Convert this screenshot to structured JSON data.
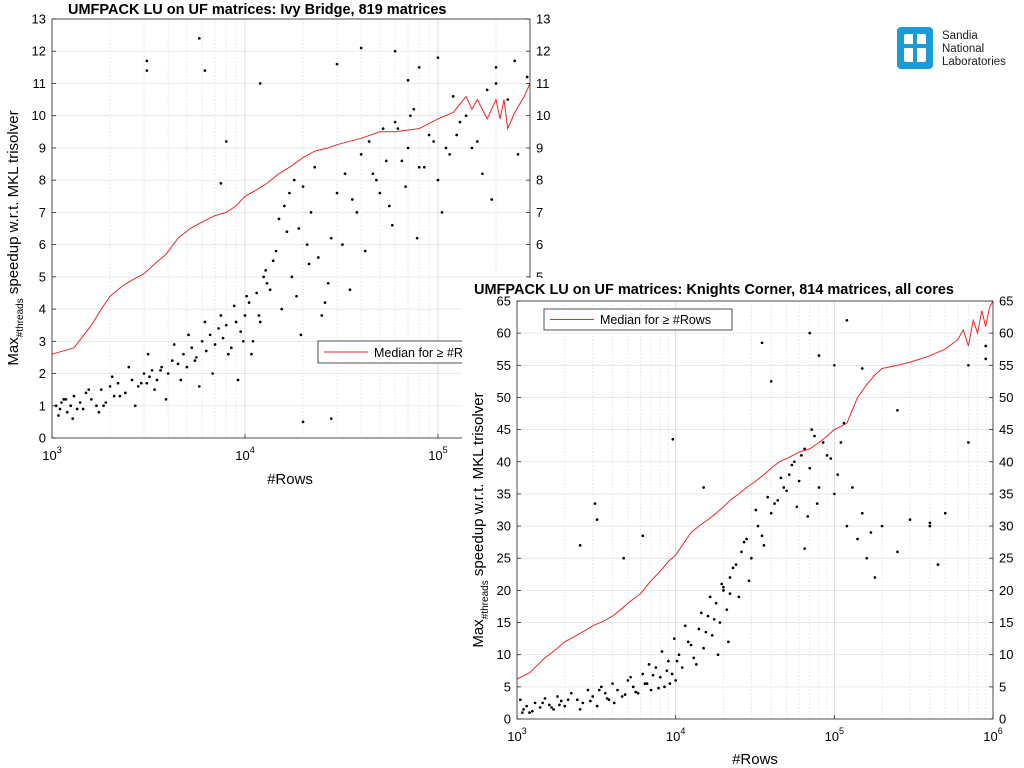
{
  "logo": {
    "lines": [
      "Sandia",
      "National",
      "Laboratories"
    ],
    "color": "#1a9ad6"
  },
  "chart_data": [
    {
      "type": "scatter",
      "title": "UMFPACK LU on UF matrices: Ivy Bridge, 819 matrices",
      "xlabel": "#Rows",
      "ylabel_main": "Max",
      "ylabel_sub": "#threads",
      "ylabel_rest": " speedup w.r.t. MKL trisolver",
      "xscale": "log",
      "xlim": [
        1000,
        300000
      ],
      "ylim": [
        0,
        13
      ],
      "y_ticks": [
        0,
        1,
        2,
        3,
        4,
        5,
        6,
        7,
        8,
        9,
        10,
        11,
        12,
        13
      ],
      "x_ticks": [
        {
          "base": "10",
          "exp": "3"
        },
        {
          "base": "10",
          "exp": "4"
        },
        {
          "base": "10",
          "exp": "5"
        }
      ],
      "grid": true,
      "legend": {
        "label": "Median for  ≥ #Rows",
        "placement": "middle-right"
      },
      "series": [
        {
          "name": "Median for  ≥ #Rows",
          "kind": "line",
          "color": "#e8282b",
          "x": [
            1000,
            1300,
            1600,
            1800,
            2000,
            2300,
            2600,
            3000,
            3400,
            3900,
            4500,
            5200,
            6000,
            7000,
            8000,
            9000,
            10000,
            11500,
            13000,
            15000,
            17000,
            20000,
            23000,
            27000,
            30000,
            40000,
            50000,
            60000,
            80000,
            100000,
            120000,
            140000,
            150000,
            160000,
            180000,
            200000,
            210000,
            220000,
            230000,
            250000,
            280000,
            300000
          ],
          "y": [
            2.6,
            2.8,
            3.5,
            4.0,
            4.4,
            4.7,
            4.9,
            5.1,
            5.4,
            5.7,
            6.2,
            6.5,
            6.7,
            6.9,
            7.0,
            7.2,
            7.5,
            7.7,
            7.9,
            8.2,
            8.4,
            8.7,
            8.9,
            9.0,
            9.1,
            9.3,
            9.5,
            9.5,
            9.6,
            9.9,
            10.1,
            10.6,
            10.2,
            10.5,
            9.9,
            10.5,
            9.9,
            10.5,
            9.6,
            10.1,
            10.6,
            11.0
          ]
        },
        {
          "name": "",
          "kind": "points",
          "color": "#000000",
          "x": [
            1050,
            1100,
            1120,
            1150,
            1200,
            1250,
            1300,
            1350,
            1400,
            1500,
            1600,
            1700,
            1800,
            1900,
            2000,
            2100,
            2200,
            2400,
            2600,
            2800,
            3000,
            3100,
            3200,
            3300,
            3500,
            3700,
            4000,
            4200,
            4500,
            4800,
            5000,
            5300,
            5600,
            6000,
            6300,
            6600,
            7000,
            7300,
            7700,
            8000,
            8500,
            9000,
            9500,
            10000,
            10500,
            11000,
            11500,
            12000,
            12500,
            13000,
            14000,
            15000,
            16000,
            17000,
            18000,
            19000,
            20000,
            21000,
            22000,
            23000,
            24000,
            26000,
            28000,
            30000,
            33000,
            36000,
            40000,
            44000,
            48000,
            52000,
            56000,
            60000,
            65000,
            70000,
            75000,
            80000,
            90000,
            100000,
            110000,
            120000,
            130000,
            140000,
            160000,
            180000,
            200000,
            230000,
            260000,
            290000,
            1080,
            1180,
            1280,
            1450,
            1550,
            1750,
            1850,
            2050,
            2250,
            2500,
            2700,
            2900,
            3150,
            3400,
            3650,
            3900,
            4300,
            4650,
            5100,
            5500,
            5800,
            6200,
            6800,
            7500,
            8200,
            8800,
            9200,
            9800,
            10200,
            10800,
            11800,
            12800,
            13500,
            14500,
            15500,
            16500,
            17500,
            18500,
            19500,
            21500,
            25000,
            27000,
            32000,
            35000,
            38000,
            42000,
            46000,
            50000,
            54000,
            58000,
            62000,
            68000,
            72000,
            78000,
            85000,
            95000,
            105000,
            115000,
            125000,
            150000,
            170000,
            190000,
            3100,
            3100,
            5800,
            6200,
            7500,
            8000,
            12000,
            20000,
            28000,
            30000,
            40000,
            60000,
            70000,
            80000,
            100000,
            200000,
            250000
          ],
          "y": [
            1.0,
            0.9,
            1.1,
            1.2,
            0.8,
            1.0,
            1.3,
            0.9,
            1.1,
            1.4,
            1.2,
            1.0,
            1.5,
            1.1,
            1.6,
            1.3,
            1.7,
            1.4,
            1.8,
            1.6,
            2.0,
            1.7,
            1.9,
            2.1,
            1.8,
            2.2,
            2.0,
            2.4,
            2.3,
            2.6,
            2.2,
            2.8,
            2.5,
            3.0,
            2.7,
            3.2,
            2.9,
            3.4,
            3.1,
            3.5,
            2.8,
            3.6,
            3.3,
            3.8,
            4.2,
            3.0,
            4.5,
            3.6,
            5.0,
            4.8,
            5.5,
            6.8,
            7.2,
            7.6,
            8.0,
            6.5,
            7.8,
            6.0,
            7.0,
            8.4,
            5.6,
            4.2,
            6.2,
            7.6,
            8.2,
            7.4,
            8.8,
            9.2,
            8.0,
            9.6,
            7.2,
            9.8,
            8.6,
            9.0,
            10.2,
            8.4,
            9.4,
            8.0,
            9.0,
            10.6,
            9.8,
            10.0,
            9.2,
            10.8,
            11.0,
            10.5,
            8.8,
            11.2,
            0.7,
            1.2,
            0.6,
            0.9,
            1.5,
            0.8,
            1.0,
            1.9,
            1.3,
            2.2,
            1.0,
            1.7,
            2.6,
            1.5,
            2.1,
            1.2,
            2.9,
            1.8,
            3.2,
            2.4,
            1.6,
            3.6,
            2.0,
            3.8,
            2.6,
            4.1,
            1.8,
            3.0,
            4.4,
            2.6,
            3.8,
            5.2,
            4.6,
            5.8,
            4.0,
            6.4,
            5.0,
            4.4,
            3.2,
            5.4,
            3.8,
            4.8,
            6.0,
            4.6,
            7.0,
            5.8,
            8.2,
            7.6,
            8.6,
            6.6,
            9.6,
            7.8,
            10.0,
            6.2,
            8.4,
            9.2,
            7.0,
            8.8,
            9.4,
            9.0,
            8.2,
            7.4,
            11.7,
            11.4,
            12.4,
            11.4,
            7.9,
            9.2,
            11.0,
            0.5,
            0.6,
            11.6,
            12.1,
            12.0,
            11.1,
            11.5,
            11.8,
            11.5,
            11.7
          ]
        }
      ]
    },
    {
      "type": "scatter",
      "title": "UMFPACK LU on UF matrices: Knights Corner, 814 matrices, all cores",
      "xlabel": "#Rows",
      "ylabel_main": "Max",
      "ylabel_sub": "#threads",
      "ylabel_rest": " speedup w.r.t. MKL trisolver",
      "xscale": "log",
      "xlim": [
        1000,
        1000000
      ],
      "ylim": [
        0,
        65
      ],
      "y_ticks": [
        0,
        5,
        10,
        15,
        20,
        25,
        30,
        35,
        40,
        45,
        50,
        55,
        60,
        65
      ],
      "x_ticks": [
        {
          "base": "10",
          "exp": "3"
        },
        {
          "base": "10",
          "exp": "4"
        },
        {
          "base": "10",
          "exp": "5"
        },
        {
          "base": "10",
          "exp": "6"
        }
      ],
      "grid": true,
      "legend": {
        "label": "Median for  ≥ #Rows",
        "placement": "top-left"
      },
      "series": [
        {
          "name": "Median for  ≥ #Rows",
          "kind": "line",
          "color": "#e8282b",
          "x": [
            1000,
            1200,
            1500,
            1800,
            2000,
            2300,
            2700,
            3000,
            3500,
            4000,
            4500,
            5000,
            6000,
            7000,
            8000,
            9000,
            10000,
            11000,
            12500,
            14000,
            16000,
            18000,
            20000,
            22000,
            25000,
            28000,
            32000,
            36000,
            40000,
            45000,
            50000,
            55000,
            60000,
            70000,
            80000,
            90000,
            100000,
            110000,
            120000,
            140000,
            160000,
            180000,
            200000,
            250000,
            300000,
            350000,
            400000,
            500000,
            600000,
            650000,
            700000,
            750000,
            800000,
            850000,
            900000,
            950000,
            1000000
          ],
          "y": [
            6.2,
            7.2,
            9.5,
            11.0,
            12.0,
            12.8,
            13.8,
            14.5,
            15.2,
            16.0,
            17.0,
            18.0,
            19.5,
            21.5,
            23.0,
            24.5,
            25.5,
            27.0,
            29.0,
            30.0,
            31.0,
            32.0,
            33.0,
            34.0,
            35.0,
            36.0,
            37.0,
            38.0,
            39.0,
            40.0,
            40.5,
            41.0,
            41.5,
            42.0,
            43.0,
            44.0,
            45.0,
            45.5,
            46.0,
            50.0,
            52.0,
            53.5,
            54.5,
            55.0,
            55.5,
            56.0,
            56.5,
            57.5,
            59.0,
            60.5,
            58.0,
            62.0,
            60.0,
            63.5,
            61.0,
            64.0,
            65.0
          ]
        },
        {
          "name": "",
          "kind": "points",
          "color": "#000000",
          "x": [
            1050,
            1100,
            1150,
            1200,
            1300,
            1400,
            1500,
            1600,
            1700,
            1800,
            1900,
            2000,
            2200,
            2400,
            2600,
            2800,
            3000,
            3200,
            3400,
            3600,
            3800,
            4000,
            4300,
            4600,
            5000,
            5400,
            5800,
            6200,
            6600,
            7000,
            7500,
            8000,
            8500,
            9000,
            9500,
            10000,
            10500,
            11000,
            12000,
            13000,
            14000,
            15000,
            16000,
            17000,
            18000,
            19000,
            20000,
            21000,
            22000,
            24000,
            26000,
            28000,
            30000,
            33000,
            36000,
            40000,
            44000,
            48000,
            52000,
            56000,
            60000,
            65000,
            70000,
            75000,
            80000,
            90000,
            100000,
            110000,
            120000,
            140000,
            160000,
            180000,
            200000,
            250000,
            300000,
            400000,
            500000,
            700000,
            900000,
            1080,
            1250,
            1450,
            1650,
            1850,
            2100,
            2500,
            2900,
            3300,
            3700,
            4100,
            4800,
            5200,
            5600,
            6400,
            6800,
            7200,
            7800,
            8200,
            8800,
            9200,
            9800,
            10200,
            11500,
            12500,
            13500,
            14500,
            15500,
            16500,
            17500,
            18500,
            19500,
            21500,
            23000,
            25000,
            27000,
            29000,
            32000,
            35000,
            38000,
            42000,
            46000,
            50000,
            54000,
            58000,
            62000,
            68000,
            72000,
            78000,
            85000,
            95000,
            105000,
            115000,
            130000,
            150000,
            170000,
            3100,
            3200,
            2500,
            4700,
            6200,
            9600,
            15000,
            20000,
            22000,
            35000,
            40000,
            65000,
            70000,
            80000,
            100000,
            120000,
            150000,
            250000,
            400000,
            450000,
            700000,
            900000
          ],
          "y": [
            3.0,
            1.5,
            2.0,
            1.0,
            2.5,
            1.8,
            3.2,
            2.2,
            1.5,
            3.5,
            2.8,
            2.0,
            4.0,
            3.0,
            2.5,
            4.5,
            3.5,
            2.0,
            5.0,
            4.0,
            3.0,
            5.5,
            4.5,
            3.5,
            6.0,
            5.0,
            4.0,
            7.0,
            5.5,
            4.5,
            8.0,
            6.5,
            5.0,
            9.0,
            7.0,
            6.0,
            10.0,
            8.0,
            12.0,
            9.5,
            14.0,
            11.0,
            16.0,
            13.0,
            18.0,
            15.0,
            20.0,
            17.0,
            22.0,
            24.0,
            26.0,
            28.0,
            25.0,
            30.0,
            27.0,
            32.0,
            34.0,
            36.0,
            38.0,
            40.0,
            37.0,
            42.0,
            39.0,
            44.0,
            36.0,
            41.0,
            35.0,
            43.0,
            30.0,
            28.0,
            25.0,
            22.0,
            30.0,
            26.0,
            31.0,
            30.0,
            32.0,
            55.0,
            58.0,
            1.0,
            1.2,
            2.5,
            1.8,
            2.2,
            3.0,
            1.5,
            2.8,
            4.5,
            3.2,
            2.5,
            3.8,
            6.5,
            4.2,
            5.5,
            8.5,
            6.8,
            4.8,
            10.5,
            7.5,
            5.5,
            12.5,
            9.0,
            14.5,
            11.5,
            8.5,
            16.5,
            13.5,
            19.0,
            15.5,
            10.0,
            21.0,
            12.0,
            23.5,
            19.0,
            27.5,
            21.5,
            32.5,
            28.5,
            34.5,
            33.5,
            37.5,
            35.5,
            39.5,
            33.0,
            41.0,
            31.5,
            45.0,
            33.5,
            43.0,
            40.5,
            38.0,
            46.0,
            36.0,
            32.0,
            29.0,
            33.5,
            31.0,
            27.0,
            25.0,
            28.5,
            43.5,
            36.0,
            20.5,
            19.5,
            58.5,
            52.5,
            26.5,
            60.0,
            56.5,
            55.0,
            62.0,
            54.5,
            48.0,
            30.5,
            24.0,
            43.0,
            56.0
          ]
        }
      ]
    }
  ]
}
